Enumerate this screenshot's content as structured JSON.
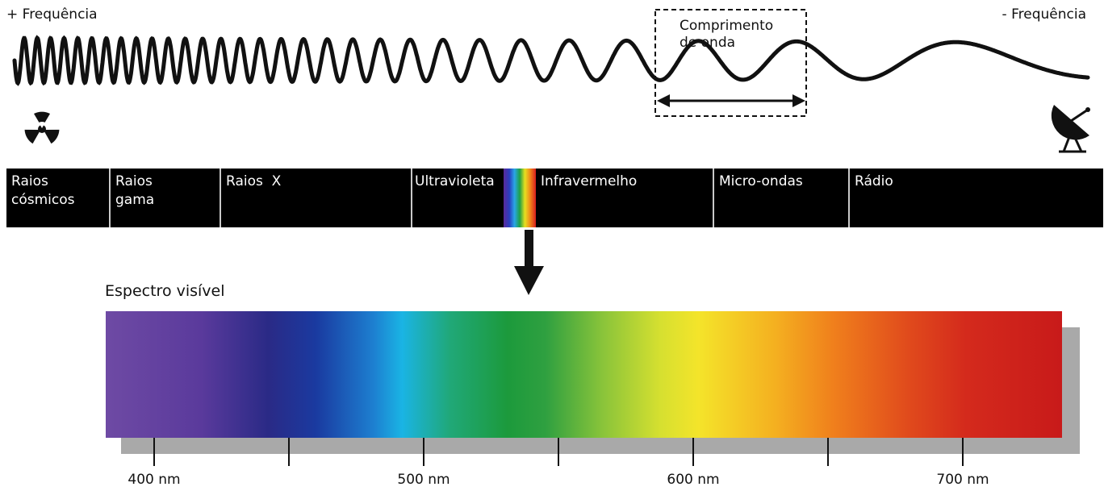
{
  "header": {
    "freq_high": "+ Frequência",
    "freq_low": "- Frequência",
    "wavelength_label_line1": "Comprimento",
    "wavelength_label_line2": "de onda"
  },
  "bands": [
    {
      "line1": "Raios",
      "line2": "cósmicos"
    },
    {
      "line1": "Raios",
      "line2": "gama"
    },
    {
      "line1": "Raios  X",
      "line2": ""
    },
    {
      "line1": "Ultravioleta",
      "line2": ""
    },
    {
      "line1": "Infravermelho",
      "line2": ""
    },
    {
      "line1": "Micro-ondas",
      "line2": ""
    },
    {
      "line1": "Rádio",
      "line2": ""
    }
  ],
  "visible": {
    "title": "Espectro visível",
    "ticks": [
      "400 nm",
      "500 nm",
      "600 nm",
      "700 nm"
    ]
  },
  "icons": {
    "left": "radiation-icon",
    "right": "satellite-dish-icon"
  },
  "colors": {
    "band_background": "#000000",
    "band_separator": "#c9c9c9",
    "spectrum_shadow": "#a9a9a9"
  }
}
